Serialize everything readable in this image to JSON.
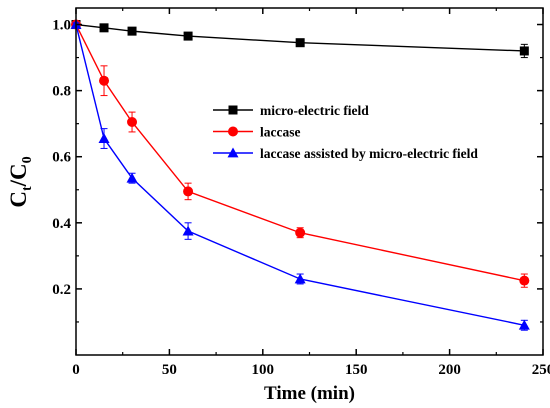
{
  "chart_data": {
    "type": "line",
    "xlabel": "Time (min)",
    "ylabel": {
      "main": "C",
      "num_sub": "t",
      "sep": "/",
      "den_main": "C",
      "den_sub": "0"
    },
    "xlim": [
      0,
      250
    ],
    "ylim": [
      0.0,
      1.05
    ],
    "xticks": [
      0,
      50,
      100,
      150,
      200,
      250
    ],
    "yticks": [
      0.2,
      0.4,
      0.6,
      0.8,
      1.0
    ],
    "x": [
      0,
      15,
      30,
      60,
      120,
      240
    ],
    "legend_position": "center-right",
    "series": [
      {
        "name": "micro-electric field",
        "marker": "square",
        "color": "#000000",
        "values": [
          1.0,
          0.99,
          0.98,
          0.965,
          0.945,
          0.92
        ],
        "errors": [
          0.005,
          0.005,
          0.005,
          0.005,
          0.005,
          0.02
        ]
      },
      {
        "name": "laccase",
        "marker": "circle",
        "color": "#ff0000",
        "values": [
          1.0,
          0.83,
          0.705,
          0.495,
          0.37,
          0.225
        ],
        "errors": [
          0.005,
          0.045,
          0.03,
          0.025,
          0.015,
          0.02
        ]
      },
      {
        "name": "laccase assisted by micro-electric field",
        "marker": "triangle",
        "color": "#0000ff",
        "values": [
          1.0,
          0.655,
          0.535,
          0.375,
          0.23,
          0.09
        ],
        "errors": [
          0.005,
          0.03,
          0.015,
          0.025,
          0.015,
          0.015
        ]
      }
    ]
  }
}
